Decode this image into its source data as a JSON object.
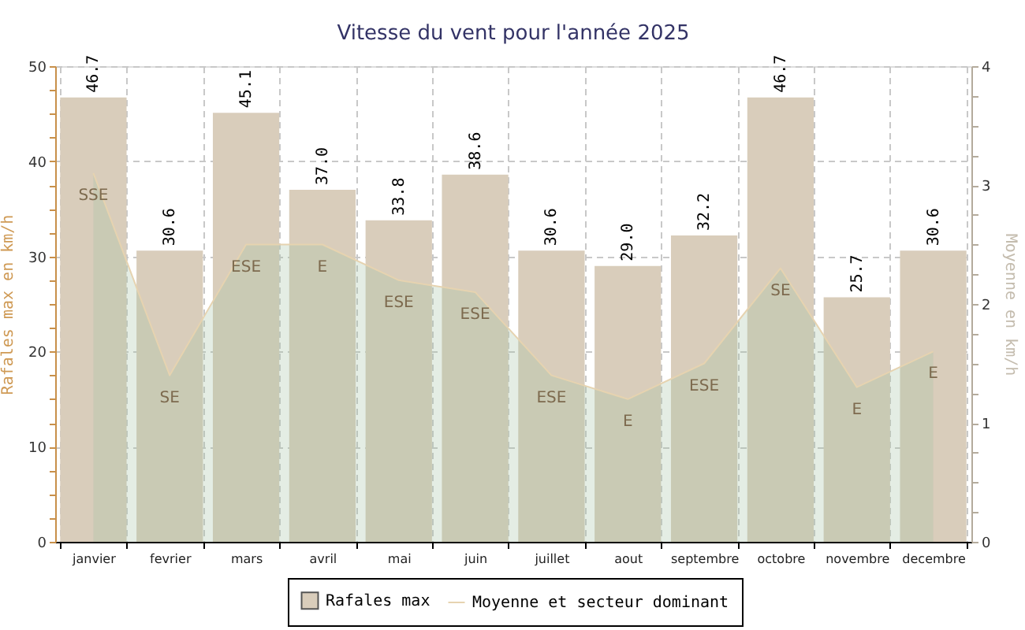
{
  "chart_data": {
    "type": "bar",
    "title": "Vitesse du vent pour l'année 2025",
    "ylabel": "Rafales max en km/h",
    "y2label": "Moyenne en km/h",
    "categories": [
      "janvier",
      "fevrier",
      "mars",
      "avril",
      "mai",
      "juin",
      "juillet",
      "aout",
      "septembre",
      "octobre",
      "novembre",
      "decembre"
    ],
    "series": [
      {
        "name": "Rafales max",
        "color": "#d9cdbb",
        "values": [
          46.7,
          30.6,
          45.1,
          37.0,
          33.8,
          38.6,
          30.6,
          29.0,
          32.2,
          46.7,
          25.7,
          30.6
        ],
        "value_labels": [
          "46.7",
          "30.6",
          "45.1",
          "37.0",
          "33.8",
          "38.6",
          "30.6",
          "29.0",
          "32.2",
          "46.7",
          "25.7",
          "30.6"
        ]
      },
      {
        "name": "Moyenne et secteur dominant",
        "type": "area",
        "axis": "y2",
        "color": "#e6d3b0",
        "values": [
          3.1,
          1.4,
          2.5,
          2.5,
          2.2,
          2.1,
          1.4,
          1.2,
          1.5,
          2.3,
          1.3,
          1.6
        ],
        "value_labels": [
          "SSE",
          "SE",
          "ESE",
          "E",
          "ESE",
          "ESE",
          "ESE",
          "E",
          "ESE",
          "SE",
          "E",
          "E"
        ]
      }
    ],
    "ylim": [
      0,
      50
    ],
    "yticks": [
      0,
      {
        "value": 2.5,
        "label": null
      },
      {
        "value": 5,
        "label": null
      },
      {
        "value": 7.5,
        "label": null
      },
      10,
      {
        "value": 12.5,
        "label": null
      },
      {
        "value": 15,
        "label": null
      },
      {
        "value": 17.5,
        "label": null
      },
      20,
      {
        "value": 22.5,
        "label": null
      },
      {
        "value": 25,
        "label": null
      },
      {
        "value": 27.5,
        "label": null
      },
      30,
      {
        "value": 32.5,
        "label": null
      },
      {
        "value": 35,
        "label": null
      },
      {
        "value": 37.5,
        "label": null
      },
      40,
      {
        "value": 42.5,
        "label": null
      },
      {
        "value": 45,
        "label": null
      },
      {
        "value": 47.5,
        "label": null
      },
      50
    ],
    "y2lim": [
      0,
      4
    ],
    "y2ticks": [
      0,
      {
        "value": 0.25,
        "label": null
      },
      {
        "value": 0.5,
        "label": null
      },
      {
        "value": 0.75,
        "label": null
      },
      1,
      {
        "value": 1.25,
        "label": null
      },
      {
        "value": 1.5,
        "label": null
      },
      {
        "value": 1.75,
        "label": null
      },
      2,
      {
        "value": 2.25,
        "label": null
      },
      {
        "value": 2.5,
        "label": null
      },
      {
        "value": 2.75,
        "label": null
      },
      3,
      {
        "value": 3.25,
        "label": null
      },
      {
        "value": 3.5,
        "label": null
      },
      {
        "value": 3.75,
        "label": null
      },
      4
    ],
    "grid": true,
    "legend": "bottom"
  }
}
